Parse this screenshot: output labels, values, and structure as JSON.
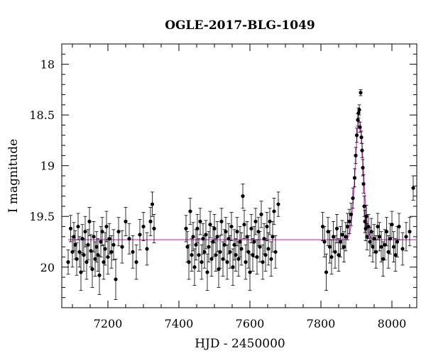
{
  "chart_data": {
    "type": "scatter",
    "title": "OGLE-2017-BLG-1049",
    "xlabel": "HJD - 2450000",
    "ylabel": "I magnitude",
    "xlim": [
      7070,
      8070
    ],
    "ylim": [
      20.4,
      17.8
    ],
    "y_inverted": true,
    "xticks": [
      7200,
      7400,
      7600,
      7800,
      8000
    ],
    "yticks": [
      18,
      18.5,
      19,
      19.5,
      20
    ],
    "ytick_labels": [
      "18",
      "18.5",
      "19",
      "19.5",
      "20"
    ],
    "grid": false,
    "series": [
      {
        "kind": "points_with_errorbars",
        "color": "#000000",
        "x": [
          7088,
          7095,
          7100,
          7104,
          7108,
          7112,
          7116,
          7120,
          7124,
          7128,
          7132,
          7136,
          7140,
          7144,
          7148,
          7152,
          7156,
          7160,
          7164,
          7168,
          7172,
          7176,
          7180,
          7184,
          7188,
          7192,
          7196,
          7200,
          7204,
          7210,
          7216,
          7222,
          7230,
          7240,
          7250,
          7260,
          7270,
          7280,
          7290,
          7300,
          7310,
          7320,
          7325,
          7330,
          7420,
          7424,
          7428,
          7432,
          7436,
          7440,
          7444,
          7448,
          7452,
          7456,
          7460,
          7464,
          7468,
          7472,
          7476,
          7480,
          7484,
          7488,
          7492,
          7496,
          7500,
          7504,
          7508,
          7512,
          7516,
          7520,
          7524,
          7528,
          7532,
          7536,
          7540,
          7544,
          7548,
          7552,
          7556,
          7560,
          7564,
          7568,
          7572,
          7576,
          7580,
          7584,
          7588,
          7592,
          7596,
          7600,
          7604,
          7608,
          7612,
          7616,
          7620,
          7624,
          7628,
          7632,
          7636,
          7640,
          7644,
          7648,
          7652,
          7656,
          7660,
          7664,
          7668,
          7672,
          7680,
          7805,
          7810,
          7815,
          7820,
          7825,
          7830,
          7835,
          7840,
          7845,
          7850,
          7855,
          7860,
          7865,
          7870,
          7875,
          7880,
          7885,
          7890,
          7895,
          7898,
          7901,
          7904,
          7906,
          7908,
          7910,
          7912,
          7914,
          7916,
          7918,
          7920,
          7922,
          7924,
          7926,
          7928,
          7930,
          7934,
          7938,
          7942,
          7946,
          7950,
          7955,
          7960,
          7965,
          7970,
          7975,
          7980,
          7985,
          7990,
          7995,
          8000,
          8005,
          8010,
          8015,
          8020,
          8030,
          8040,
          8050,
          8060
        ],
        "y": [
          19.95,
          19.62,
          19.85,
          19.7,
          19.78,
          19.92,
          19.6,
          19.85,
          20.05,
          19.72,
          19.88,
          19.65,
          19.95,
          19.78,
          19.55,
          19.84,
          20.02,
          19.7,
          19.92,
          19.8,
          19.88,
          20.08,
          19.75,
          19.65,
          19.95,
          19.82,
          19.6,
          19.9,
          19.72,
          19.85,
          19.78,
          20.12,
          19.65,
          19.8,
          19.55,
          19.72,
          19.85,
          19.95,
          19.68,
          19.6,
          19.82,
          19.55,
          19.38,
          19.62,
          19.62,
          19.8,
          19.95,
          19.45,
          19.88,
          19.7,
          20.0,
          19.78,
          19.62,
          19.88,
          19.55,
          19.95,
          19.72,
          19.85,
          19.68,
          20.05,
          19.8,
          19.58,
          19.92,
          19.75,
          19.62,
          19.88,
          19.7,
          20.02,
          19.85,
          19.55,
          19.92,
          19.78,
          19.65,
          19.95,
          19.72,
          19.85,
          19.6,
          20.0,
          19.78,
          19.88,
          19.65,
          19.92,
          19.75,
          19.82,
          19.3,
          19.58,
          19.95,
          19.7,
          19.85,
          20.05,
          19.62,
          19.88,
          19.75,
          19.55,
          19.9,
          19.65,
          19.8,
          19.48,
          19.95,
          19.72,
          19.88,
          19.6,
          19.82,
          19.55,
          19.92,
          19.7,
          19.45,
          19.85,
          19.38,
          19.6,
          19.75,
          20.05,
          19.65,
          19.8,
          19.9,
          19.7,
          19.85,
          19.62,
          19.88,
          19.75,
          19.68,
          19.8,
          19.7,
          19.6,
          19.55,
          19.48,
          19.32,
          19.12,
          18.9,
          18.7,
          18.55,
          18.48,
          18.45,
          18.62,
          18.28,
          18.72,
          18.85,
          19.02,
          19.18,
          19.4,
          19.55,
          19.62,
          19.5,
          19.7,
          19.6,
          19.75,
          19.65,
          19.8,
          19.72,
          19.85,
          19.6,
          19.7,
          19.8,
          19.92,
          19.78,
          19.65,
          19.85,
          19.72,
          19.58,
          19.8,
          19.88,
          19.75,
          19.6,
          19.82,
          19.7,
          19.65,
          19.22
        ],
        "yerr": [
          0.12,
          0.13,
          0.15,
          0.14,
          0.14,
          0.16,
          0.13,
          0.15,
          0.18,
          0.14,
          0.16,
          0.15,
          0.17,
          0.15,
          0.14,
          0.16,
          0.18,
          0.15,
          0.17,
          0.15,
          0.16,
          0.19,
          0.15,
          0.14,
          0.17,
          0.16,
          0.15,
          0.17,
          0.15,
          0.16,
          0.15,
          0.2,
          0.14,
          0.16,
          0.14,
          0.15,
          0.16,
          0.17,
          0.15,
          0.14,
          0.16,
          0.14,
          0.12,
          0.14,
          0.13,
          0.15,
          0.17,
          0.13,
          0.16,
          0.14,
          0.18,
          0.15,
          0.14,
          0.16,
          0.13,
          0.17,
          0.15,
          0.16,
          0.14,
          0.18,
          0.15,
          0.13,
          0.17,
          0.15,
          0.14,
          0.16,
          0.15,
          0.18,
          0.16,
          0.13,
          0.17,
          0.15,
          0.14,
          0.17,
          0.15,
          0.16,
          0.14,
          0.18,
          0.15,
          0.16,
          0.14,
          0.17,
          0.15,
          0.16,
          0.12,
          0.14,
          0.17,
          0.15,
          0.16,
          0.18,
          0.14,
          0.16,
          0.15,
          0.13,
          0.17,
          0.14,
          0.15,
          0.13,
          0.17,
          0.15,
          0.16,
          0.14,
          0.16,
          0.13,
          0.17,
          0.15,
          0.13,
          0.16,
          0.12,
          0.14,
          0.15,
          0.18,
          0.14,
          0.16,
          0.17,
          0.15,
          0.16,
          0.14,
          0.16,
          0.15,
          0.14,
          0.15,
          0.14,
          0.13,
          0.12,
          0.11,
          0.1,
          0.09,
          0.08,
          0.07,
          0.06,
          0.05,
          0.05,
          0.05,
          0.03,
          0.06,
          0.07,
          0.08,
          0.09,
          0.1,
          0.11,
          0.12,
          0.11,
          0.13,
          0.12,
          0.14,
          0.13,
          0.15,
          0.14,
          0.16,
          0.13,
          0.14,
          0.15,
          0.17,
          0.15,
          0.14,
          0.16,
          0.15,
          0.13,
          0.15,
          0.16,
          0.15,
          0.13,
          0.16,
          0.14,
          0.14,
          0.12
        ]
      },
      {
        "kind": "model_curve",
        "color": "#e23ad6",
        "baseline": 19.73,
        "peak_x": 7908,
        "peak_y": 18.55,
        "width": 16
      }
    ]
  }
}
